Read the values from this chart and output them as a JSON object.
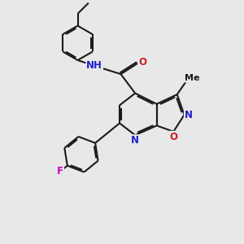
{
  "bg": "#e8e8e8",
  "bc": "#1a1a1a",
  "bw": 1.5,
  "atom_colors": {
    "N": "#2020cc",
    "O": "#cc2020",
    "F": "#cc00cc",
    "C": "#1a1a1a"
  },
  "fs": 8.5
}
